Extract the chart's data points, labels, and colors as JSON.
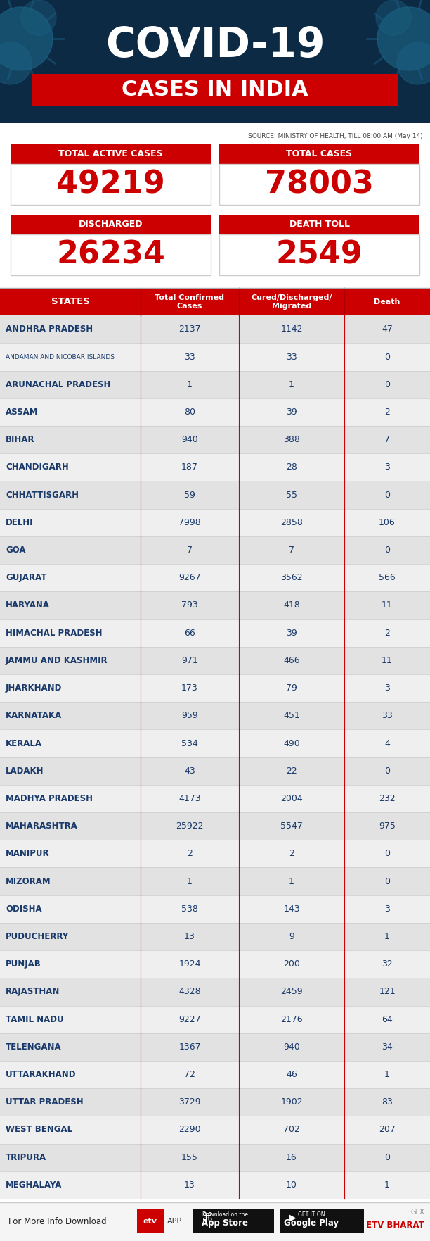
{
  "title_line1": "COVID-19",
  "title_line2": "CASES IN INDIA",
  "source_text": "SOURCE: MINISTRY OF HEALTH, TILL 08:00 AM (May 14)",
  "summary_boxes": [
    {
      "label": "TOTAL ACTIVE CASES",
      "value": "49219"
    },
    {
      "label": "TOTAL CASES",
      "value": "78003"
    },
    {
      "label": "DISCHARGED",
      "value": "26234"
    },
    {
      "label": "DEATH TOLL",
      "value": "2549"
    }
  ],
  "col_headers": [
    "STATES",
    "Total Confirmed\nCases",
    "Cured/Discharged/\nMigrated",
    "Death"
  ],
  "states": [
    [
      "ANDHRA PRADESH",
      "2137",
      "1142",
      "47",
      false
    ],
    [
      "ANDAMAN AND NICOBAR ISLANDS",
      "33",
      "33",
      "0",
      true
    ],
    [
      "ARUNACHAL PRADESH",
      "1",
      "1",
      "0",
      false
    ],
    [
      "ASSAM",
      "80",
      "39",
      "2",
      false
    ],
    [
      "BIHAR",
      "940",
      "388",
      "7",
      false
    ],
    [
      "CHANDIGARH",
      "187",
      "28",
      "3",
      false
    ],
    [
      "CHHATTISGARH",
      "59",
      "55",
      "0",
      false
    ],
    [
      "DELHI",
      "7998",
      "2858",
      "106",
      false
    ],
    [
      "GOA",
      "7",
      "7",
      "0",
      false
    ],
    [
      "GUJARAT",
      "9267",
      "3562",
      "566",
      false
    ],
    [
      "HARYANA",
      "793",
      "418",
      "11",
      false
    ],
    [
      "HIMACHAL PRADESH",
      "66",
      "39",
      "2",
      false
    ],
    [
      "JAMMU AND KASHMIR",
      "971",
      "466",
      "11",
      false
    ],
    [
      "JHARKHAND",
      "173",
      "79",
      "3",
      false
    ],
    [
      "KARNATAKA",
      "959",
      "451",
      "33",
      false
    ],
    [
      "KERALA",
      "534",
      "490",
      "4",
      false
    ],
    [
      "LADAKH",
      "43",
      "22",
      "0",
      false
    ],
    [
      "MADHYA PRADESH",
      "4173",
      "2004",
      "232",
      false
    ],
    [
      "MAHARASHTRA",
      "25922",
      "5547",
      "975",
      false
    ],
    [
      "MANIPUR",
      "2",
      "2",
      "0",
      false
    ],
    [
      "MIZORAM",
      "1",
      "1",
      "0",
      false
    ],
    [
      "ODISHA",
      "538",
      "143",
      "3",
      false
    ],
    [
      "PUDUCHERRY",
      "13",
      "9",
      "1",
      false
    ],
    [
      "PUNJAB",
      "1924",
      "200",
      "32",
      false
    ],
    [
      "RAJASTHAN",
      "4328",
      "2459",
      "121",
      false
    ],
    [
      "TAMIL NADU",
      "9227",
      "2176",
      "64",
      false
    ],
    [
      "TELENGANA",
      "1367",
      "940",
      "34",
      false
    ],
    [
      "UTTARAKHAND",
      "72",
      "46",
      "1",
      false
    ],
    [
      "UTTAR PRADESH",
      "3729",
      "1902",
      "83",
      false
    ],
    [
      "WEST BENGAL",
      "2290",
      "702",
      "207",
      false
    ],
    [
      "TRIPURA",
      "155",
      "16",
      "0",
      false
    ],
    [
      "MEGHALAYA",
      "13",
      "10",
      "1",
      false
    ]
  ],
  "header_bg": "#cc0000",
  "header_text": "#ffffff",
  "row_text_color": "#1a3a6b",
  "banner_bg": "#0d2a45",
  "red_accent": "#cc0000",
  "footer_bg": "#f5f5f5",
  "divider_red": "#cc0000",
  "row_colors": [
    "#e2e2e2",
    "#efefef"
  ]
}
